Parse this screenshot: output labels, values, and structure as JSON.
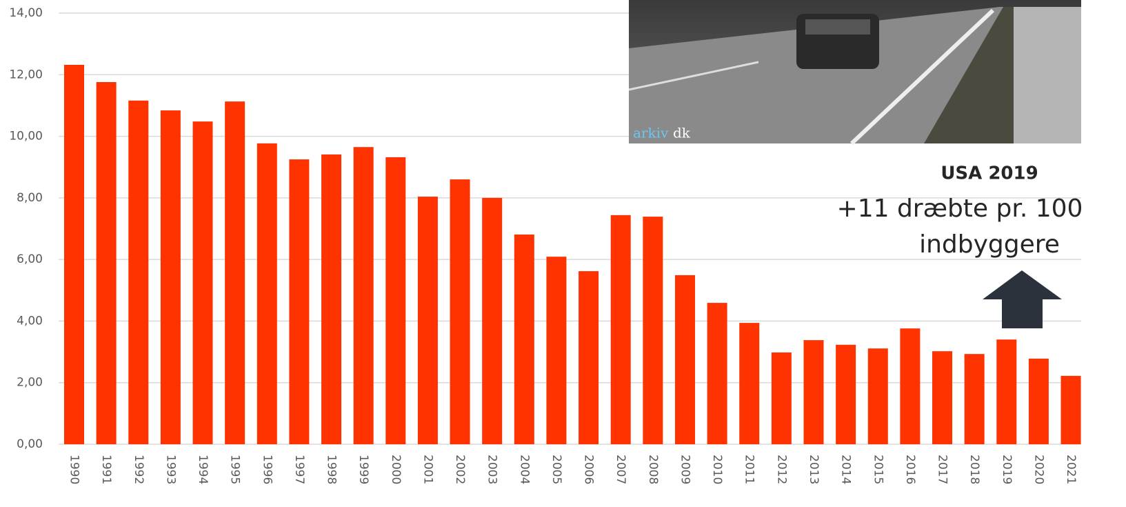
{
  "chart_data": {
    "type": "bar",
    "categories": [
      "1990",
      "1991",
      "1992",
      "1993",
      "1994",
      "1995",
      "1996",
      "1997",
      "1998",
      "1999",
      "2000",
      "2001",
      "2002",
      "2003",
      "2004",
      "2005",
      "2006",
      "2007",
      "2008",
      "2009",
      "2010",
      "2011",
      "2012",
      "2013",
      "2014",
      "2015",
      "2016",
      "2017",
      "2018",
      "2019",
      "2020",
      "2021"
    ],
    "values": [
      12.32,
      11.76,
      11.16,
      10.84,
      10.48,
      11.13,
      9.77,
      9.25,
      9.41,
      9.65,
      9.32,
      8.04,
      8.6,
      8.0,
      6.81,
      6.09,
      5.62,
      7.44,
      7.39,
      5.49,
      4.59,
      3.94,
      2.98,
      3.38,
      3.23,
      3.11,
      3.76,
      3.02,
      2.93,
      3.4,
      2.78,
      2.22
    ],
    "color": "#ff3300",
    "ylim": [
      0,
      14
    ],
    "yticks": [
      {
        "value": 0,
        "label": "0,00"
      },
      {
        "value": 2,
        "label": "2,00"
      },
      {
        "value": 4,
        "label": "4,00"
      },
      {
        "value": 6,
        "label": "6,00"
      },
      {
        "value": 8,
        "label": "8,00"
      },
      {
        "value": 10,
        "label": "10,00"
      },
      {
        "value": 12,
        "label": "12,00"
      },
      {
        "value": 14,
        "label": "14,00"
      }
    ],
    "grid": true,
    "annotations": {
      "heading": "USA 2019",
      "line1": "+11 dræbte pr. 100",
      "line2": "indbyggere"
    },
    "photo_credit": {
      "part1": "arkiv",
      "part2": "dk"
    }
  }
}
